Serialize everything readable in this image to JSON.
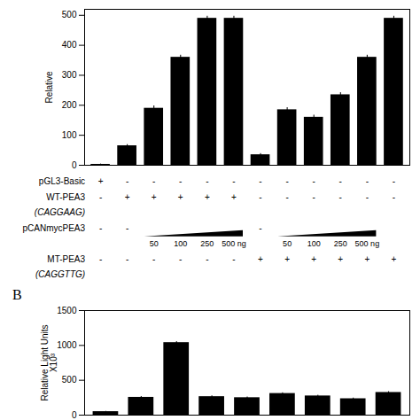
{
  "chart_data": [
    {
      "type": "bar",
      "categories": [
        null,
        null,
        null,
        null,
        null,
        null,
        null,
        null,
        null,
        null,
        null,
        null
      ],
      "values": [
        3,
        65,
        190,
        360,
        490,
        490,
        35,
        185,
        160,
        235,
        360,
        490
      ],
      "errors": [
        1,
        4,
        8,
        7,
        7,
        7,
        4,
        7,
        7,
        7,
        7,
        7
      ],
      "color": "#000000",
      "ylabel": "Relative",
      "ylim": [
        0,
        520
      ],
      "yticks": [
        0,
        100,
        200,
        300,
        400,
        500
      ],
      "grid": false,
      "tick_labels": "y",
      "annotations": [
        {
          "text": "pGL3-Basic",
          "cells": [
            "+",
            "-",
            "-",
            "-",
            "-",
            "-",
            "-",
            "-",
            "-",
            "-",
            "-",
            "-"
          ]
        },
        {
          "text": "WT-PEA3",
          "cells": [
            "-",
            "+",
            "+",
            "+",
            "+",
            "+",
            "-",
            "-",
            "-",
            "-",
            "-",
            "-"
          ]
        },
        {
          "text": "(CAGGAAG)"
        },
        {
          "text": "pCANmycPEA3",
          "cells": [
            "-",
            "-",
            null,
            null,
            null,
            null,
            "-",
            null,
            null,
            null,
            null,
            null
          ]
        },
        {
          "cells": [
            null,
            null,
            "50",
            "100",
            "250",
            "500 ng",
            null,
            "50",
            "100",
            "250",
            "500 ng",
            null
          ]
        },
        {
          "text": "MT-PEA3",
          "cells": [
            "-",
            "-",
            "-",
            "-",
            "-",
            "-",
            "+",
            "+",
            "+",
            "+",
            "+",
            "+"
          ]
        },
        {
          "text": "(CAGGTTG)"
        }
      ]
    },
    {
      "type": "bar",
      "title": "B",
      "categories": [
        null,
        null,
        null,
        null,
        null,
        null,
        null,
        null,
        null
      ],
      "values": [
        50,
        255,
        1040,
        265,
        250,
        310,
        275,
        235,
        325
      ],
      "errors": [
        4,
        12,
        15,
        12,
        10,
        10,
        10,
        10,
        12
      ],
      "color": "#000000",
      "ylabel": "Relative Light Units\nX10³",
      "ylim": [
        0,
        1500
      ],
      "yticks": [
        0,
        500,
        1000,
        1500
      ],
      "grid": false,
      "tick_labels": "y"
    }
  ]
}
